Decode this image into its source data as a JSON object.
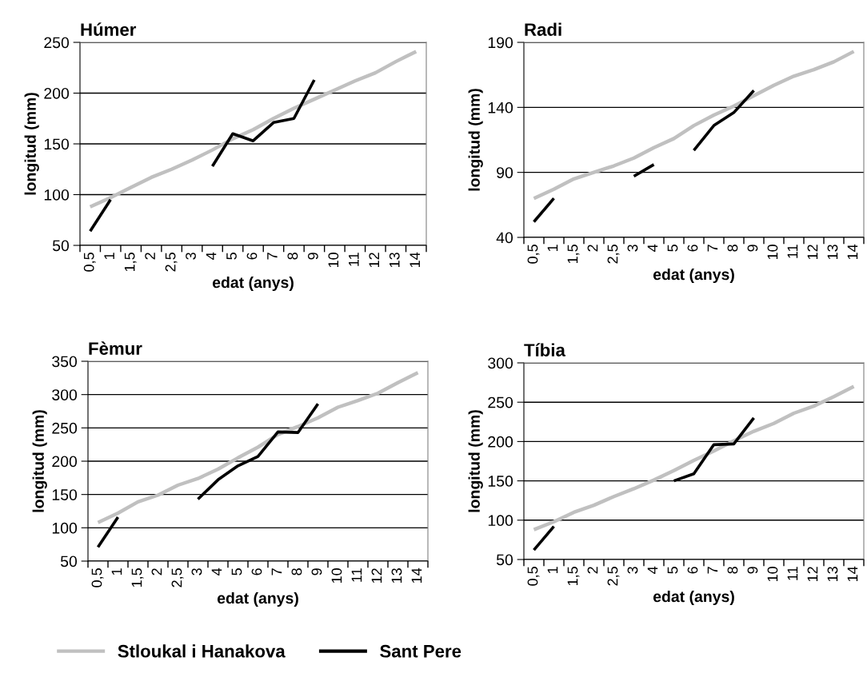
{
  "chart_data": [
    {
      "type": "line",
      "title": "Húmer",
      "xlabel": "edat (anys)",
      "ylabel": "longitud (mm)",
      "categories": [
        "0,5",
        "1",
        "1,5",
        "2",
        "2,5",
        "3",
        "4",
        "5",
        "6",
        "7",
        "8",
        "9",
        "10",
        "11",
        "12",
        "13",
        "14"
      ],
      "ylim": [
        50,
        250
      ],
      "yticks": [
        50,
        100,
        150,
        200,
        250
      ],
      "grid": "y",
      "legend": "bottom",
      "marker": "none",
      "series": [
        {
          "name": "Stloukal i Hanakova",
          "color": "#c0c0c0",
          "values": [
            88,
            97,
            107,
            117,
            125,
            134,
            144,
            155,
            164,
            175,
            185,
            194,
            203,
            212,
            220,
            231,
            241
          ]
        },
        {
          "name": "Sant Pere",
          "color": "#000000",
          "values": [
            64,
            95,
            null,
            null,
            null,
            null,
            128,
            160,
            153,
            171,
            175,
            213,
            null,
            null,
            null,
            null,
            null
          ]
        }
      ]
    },
    {
      "type": "line",
      "title": "Radi",
      "xlabel": "edat (anys)",
      "ylabel": "longitud (mm)",
      "categories": [
        "0,5",
        "1",
        "1,5",
        "2",
        "2,5",
        "3",
        "4",
        "5",
        "6",
        "7",
        "8",
        "9",
        "10",
        "11",
        "12",
        "13",
        "14"
      ],
      "ylim": [
        40,
        190
      ],
      "yticks": [
        40,
        90,
        140,
        190
      ],
      "grid": "y",
      "marker": "none",
      "series": [
        {
          "color": "#c0c0c0",
          "values": [
            70,
            77,
            85,
            90,
            95,
            101,
            109,
            116,
            126,
            134,
            141,
            149,
            157,
            164,
            169,
            175,
            183
          ]
        },
        {
          "color": "#000000",
          "values": [
            52,
            70,
            null,
            null,
            null,
            87,
            96,
            null,
            107,
            126,
            136,
            153,
            null,
            null,
            null,
            null,
            null
          ]
        }
      ]
    },
    {
      "type": "line",
      "title": "Fèmur",
      "xlabel": "edat (anys)",
      "ylabel": "longitud (mm)",
      "categories": [
        "0,5",
        "1",
        "1,5",
        "2",
        "2,5",
        "3",
        "4",
        "5",
        "6",
        "7",
        "8",
        "9",
        "10",
        "11",
        "12",
        "13",
        "14"
      ],
      "ylim": [
        50,
        350
      ],
      "yticks": [
        50,
        100,
        150,
        200,
        250,
        300,
        350
      ],
      "grid": "y",
      "marker": "none",
      "series": [
        {
          "color": "#c0c0c0",
          "values": [
            108,
            122,
            139,
            149,
            164,
            174,
            188,
            205,
            221,
            240,
            252,
            265,
            281,
            291,
            302,
            318,
            333
          ]
        },
        {
          "color": "#000000",
          "values": [
            71,
            116,
            null,
            null,
            null,
            143,
            172,
            193,
            207,
            244,
            243,
            286,
            null,
            null,
            null,
            null,
            null
          ]
        }
      ]
    },
    {
      "type": "line",
      "title": "Tíbia",
      "xlabel": "edat (anys)",
      "ylabel": "longitud (mm)",
      "categories": [
        "0,5",
        "1",
        "1,5",
        "2",
        "2,5",
        "3",
        "4",
        "5",
        "6",
        "7",
        "8",
        "9",
        "10",
        "11",
        "12",
        "13",
        "14"
      ],
      "ylim": [
        50,
        300
      ],
      "yticks": [
        50,
        100,
        150,
        200,
        250,
        300
      ],
      "grid": "y",
      "marker": "none",
      "series": [
        {
          "color": "#c0c0c0",
          "values": [
            88,
            98,
            110,
            119,
            130,
            140,
            151,
            163,
            176,
            188,
            201,
            213,
            223,
            236,
            245,
            257,
            270
          ]
        },
        {
          "color": "#000000",
          "values": [
            62,
            92,
            null,
            null,
            null,
            null,
            null,
            150,
            159,
            196,
            197,
            230,
            null,
            null,
            null,
            null,
            null
          ]
        }
      ]
    }
  ]
}
